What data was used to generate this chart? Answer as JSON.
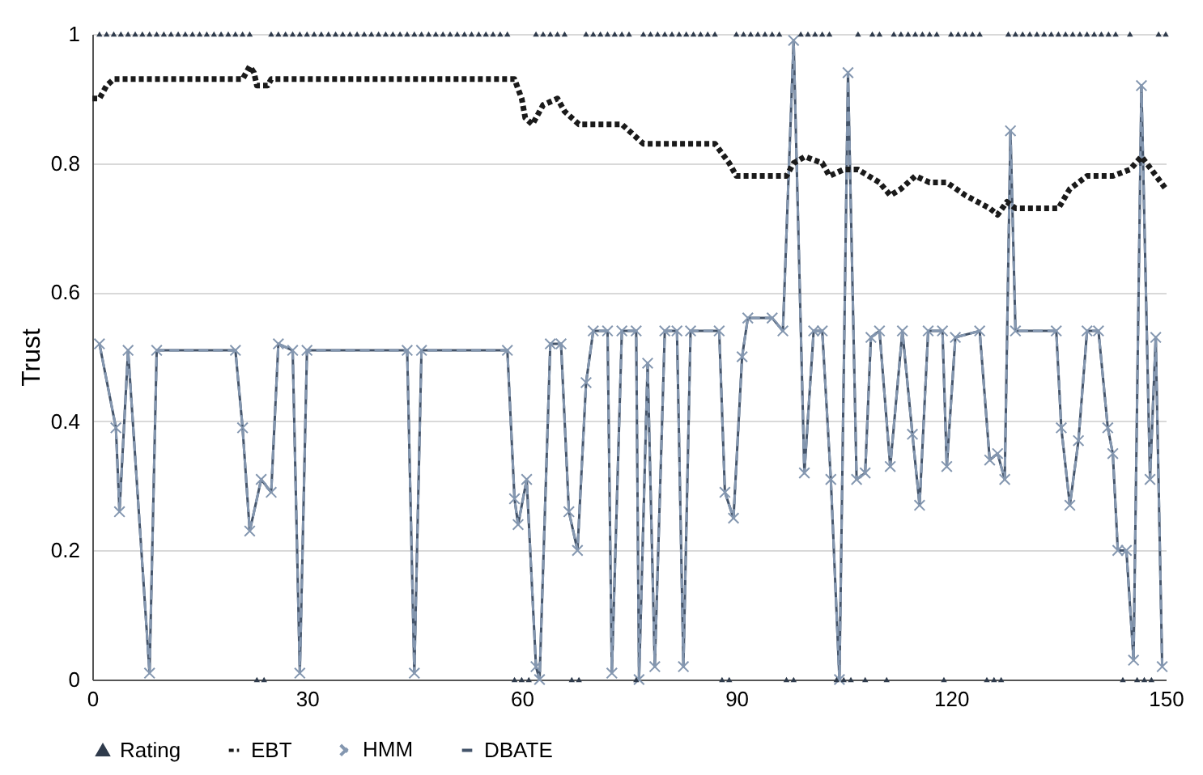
{
  "chart_data": {
    "type": "line",
    "ylabel": "Trust",
    "xlim": [
      0,
      150
    ],
    "xticks": [
      0,
      30,
      60,
      90,
      120,
      150
    ],
    "ylim": [
      0,
      1
    ],
    "yticks": [
      0,
      0.2,
      0.4,
      0.6,
      0.8,
      1
    ],
    "grid": "y",
    "legend": "bottom",
    "x": [
      1,
      2,
      3,
      4,
      5,
      6,
      7,
      8,
      9,
      10,
      11,
      12,
      13,
      14,
      15,
      16,
      17,
      18,
      19,
      20,
      21,
      22,
      23,
      24,
      25,
      26,
      27,
      28,
      29,
      30,
      31,
      32,
      33,
      34,
      35,
      36,
      37,
      38,
      39,
      40,
      41,
      42,
      43,
      44,
      45,
      46,
      47,
      48,
      49,
      50,
      51,
      52,
      53,
      54,
      55,
      56,
      57,
      58,
      59,
      60,
      61,
      62,
      63,
      64,
      65,
      66,
      67,
      68,
      69,
      70,
      71,
      72,
      73,
      74,
      75,
      76,
      77,
      78,
      79,
      80,
      81,
      82,
      83,
      84,
      85,
      86,
      87,
      88,
      89,
      90,
      91,
      92,
      93,
      94,
      95,
      96,
      97,
      98,
      99,
      100,
      101,
      102,
      103,
      104,
      105,
      106,
      107,
      108,
      109,
      110,
      111,
      112,
      113,
      114,
      115,
      116,
      117,
      118,
      119,
      120,
      121,
      122,
      123,
      124,
      125,
      126,
      127,
      128,
      129,
      130,
      131,
      132,
      133,
      134,
      135,
      136,
      137,
      138,
      139,
      140,
      141,
      142,
      143,
      144,
      145,
      146,
      147,
      148,
      149,
      150
    ],
    "series": [
      {
        "name": "Rating",
        "type": "scatter",
        "color": "#2f3b4c",
        "marker": "triangle",
        "values": [
          1,
          1,
          1,
          1,
          1,
          1,
          1,
          1,
          1,
          1,
          1,
          1,
          1,
          1,
          1,
          1,
          1,
          1,
          1,
          1,
          1,
          1,
          0,
          0,
          1,
          1,
          1,
          1,
          1,
          1,
          1,
          1,
          1,
          1,
          1,
          1,
          1,
          1,
          1,
          1,
          1,
          1,
          1,
          1,
          1,
          1,
          1,
          1,
          1,
          1,
          1,
          1,
          1,
          1,
          1,
          1,
          1,
          1,
          0,
          0,
          0,
          1,
          1,
          1,
          1,
          1,
          0,
          0,
          1,
          1,
          1,
          1,
          1,
          1,
          1,
          0,
          1,
          1,
          1,
          1,
          1,
          1,
          1,
          1,
          1,
          1,
          1,
          0,
          0,
          1,
          1,
          1,
          1,
          1,
          1,
          1,
          0,
          0,
          1,
          1,
          1,
          1,
          1,
          0,
          0,
          0,
          1,
          0,
          1,
          1,
          0,
          1,
          1,
          1,
          1,
          1,
          1,
          1,
          0,
          1,
          1,
          1,
          1,
          1,
          0,
          0,
          0,
          1,
          1,
          1,
          1,
          1,
          1,
          1,
          1,
          1,
          1,
          1,
          1,
          1,
          1,
          1,
          1,
          0,
          1,
          0,
          0,
          0,
          1,
          1
        ]
      },
      {
        "name": "EBT",
        "color": "#1a1a1a",
        "line_style": "dotted",
        "marker": "none",
        "x": [
          0,
          1,
          2,
          3,
          21,
          22,
          22.6,
          23,
          24.5,
          25,
          59,
          60,
          60.5,
          61.5,
          63,
          65,
          66,
          68,
          74,
          76,
          77,
          87,
          89,
          90,
          97,
          98,
          99.6,
          102,
          103,
          105,
          107,
          110,
          111.5,
          113,
          115,
          117,
          119.4,
          122,
          125.4,
          126.5,
          127.8,
          129,
          135,
          136.6,
          139,
          142.6,
          145,
          146.6,
          148,
          150
        ],
        "values": [
          0.9,
          0.9,
          0.92,
          0.93,
          0.93,
          0.95,
          0.94,
          0.92,
          0.92,
          0.93,
          0.93,
          0.9,
          0.87,
          0.86,
          0.89,
          0.9,
          0.88,
          0.86,
          0.86,
          0.84,
          0.83,
          0.83,
          0.8,
          0.78,
          0.78,
          0.8,
          0.81,
          0.8,
          0.78,
          0.79,
          0.79,
          0.77,
          0.75,
          0.76,
          0.78,
          0.77,
          0.77,
          0.75,
          0.73,
          0.72,
          0.74,
          0.73,
          0.73,
          0.76,
          0.78,
          0.78,
          0.79,
          0.81,
          0.79,
          0.76
        ]
      },
      {
        "name": "HMM",
        "color": "#8497b0",
        "line_style": "dashed",
        "marker": "cross",
        "x": [
          1,
          3.3,
          3.8,
          5,
          8,
          9,
          20,
          21,
          22,
          23.6,
          25,
          26,
          28,
          29,
          30,
          44,
          45,
          46,
          58,
          59,
          59.5,
          60.7,
          62,
          62.5,
          64,
          65.5,
          66.6,
          67.8,
          69,
          70,
          72,
          72.6,
          74,
          76,
          76.4,
          77.6,
          78.6,
          80,
          81.7,
          82.6,
          83.6,
          87.6,
          88.4,
          89.6,
          90.8,
          91.6,
          95,
          96.5,
          98,
          99.5,
          100.8,
          102,
          103.2,
          104.4,
          105.6,
          106.8,
          108,
          108.8,
          110,
          111.5,
          113.2,
          114.6,
          115.6,
          116.8,
          118.8,
          119.4,
          120.6,
          124,
          125.4,
          126.5,
          127.5,
          128.3,
          129,
          134.7,
          135.4,
          136.6,
          137.8,
          139,
          140.6,
          141.9,
          142.6,
          143.3,
          144.5,
          145.5,
          146.6,
          147.8,
          148.6,
          149.5
        ],
        "values": [
          0.52,
          0.39,
          0.26,
          0.51,
          0.01,
          0.51,
          0.51,
          0.39,
          0.23,
          0.31,
          0.29,
          0.52,
          0.51,
          0.01,
          0.51,
          0.51,
          0.01,
          0.51,
          0.51,
          0.28,
          0.24,
          0.31,
          0.02,
          0,
          0.52,
          0.52,
          0.26,
          0.2,
          0.46,
          0.54,
          0.54,
          0.01,
          0.54,
          0.54,
          0,
          0.49,
          0.02,
          0.54,
          0.54,
          0.02,
          0.54,
          0.54,
          0.29,
          0.25,
          0.5,
          0.56,
          0.56,
          0.54,
          0.99,
          0.32,
          0.54,
          0.54,
          0.31,
          0,
          0.94,
          0.31,
          0.32,
          0.53,
          0.54,
          0.33,
          0.54,
          0.38,
          0.27,
          0.54,
          0.54,
          0.33,
          0.53,
          0.54,
          0.34,
          0.35,
          0.31,
          0.85,
          0.54,
          0.54,
          0.39,
          0.27,
          0.37,
          0.54,
          0.54,
          0.39,
          0.35,
          0.2,
          0.2,
          0.03,
          0.92,
          0.31,
          0.53,
          0.02
        ]
      },
      {
        "name": "DBATE",
        "color": "#44546a",
        "line_style": "solid",
        "marker": "none",
        "x": [
          1,
          3.3,
          3.8,
          5,
          8,
          9,
          20,
          21,
          22,
          23.6,
          25,
          26,
          28,
          29,
          30,
          44,
          45,
          46,
          58,
          59,
          59.5,
          60.7,
          62,
          62.5,
          64,
          65.5,
          66.6,
          67.8,
          69,
          70,
          72,
          72.6,
          74,
          76,
          76.4,
          77.6,
          78.6,
          80,
          81.7,
          82.6,
          83.6,
          87.6,
          88.4,
          89.6,
          90.8,
          91.6,
          95,
          96.5,
          98,
          99.5,
          100.8,
          102,
          103.2,
          104.4,
          105.6,
          106.8,
          108,
          108.8,
          110,
          111.5,
          113.2,
          114.6,
          115.6,
          116.8,
          118.8,
          119.4,
          120.6,
          124,
          125.4,
          126.5,
          127.5,
          128.3,
          129,
          134.7,
          135.4,
          136.6,
          137.8,
          139,
          140.6,
          141.9,
          142.6,
          143.3,
          144.5,
          145.5,
          146.6,
          147.8,
          148.6,
          149.5
        ],
        "values": [
          0.52,
          0.39,
          0.26,
          0.51,
          0.01,
          0.51,
          0.51,
          0.39,
          0.23,
          0.31,
          0.29,
          0.52,
          0.51,
          0.01,
          0.51,
          0.51,
          0.01,
          0.51,
          0.51,
          0.28,
          0.24,
          0.31,
          0.02,
          0,
          0.52,
          0.52,
          0.26,
          0.2,
          0.46,
          0.54,
          0.54,
          0.01,
          0.54,
          0.54,
          0,
          0.49,
          0.02,
          0.54,
          0.54,
          0.02,
          0.54,
          0.54,
          0.29,
          0.25,
          0.5,
          0.56,
          0.56,
          0.54,
          0.99,
          0.32,
          0.54,
          0.54,
          0.31,
          0,
          0.94,
          0.31,
          0.32,
          0.53,
          0.54,
          0.33,
          0.54,
          0.38,
          0.27,
          0.54,
          0.54,
          0.33,
          0.53,
          0.54,
          0.34,
          0.35,
          0.31,
          0.85,
          0.54,
          0.54,
          0.39,
          0.27,
          0.37,
          0.54,
          0.54,
          0.39,
          0.35,
          0.2,
          0.2,
          0.03,
          0.92,
          0.31,
          0.53,
          0.02
        ]
      }
    ]
  }
}
